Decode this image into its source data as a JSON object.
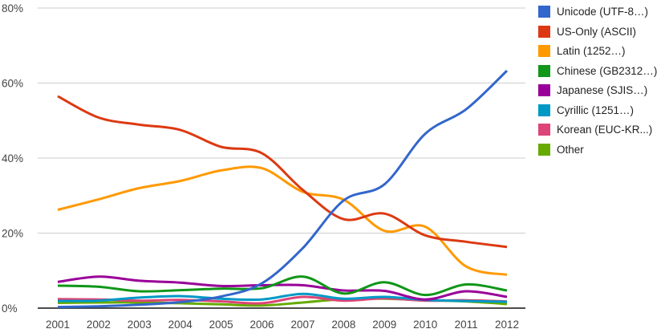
{
  "chart_data": {
    "type": "line",
    "curve": "smooth",
    "grid": true,
    "legend_position": "right",
    "x": [
      "2001",
      "2002",
      "2003",
      "2004",
      "2005",
      "2006",
      "2007",
      "2008",
      "2009",
      "2010",
      "2011",
      "2012"
    ],
    "ylim": [
      0,
      80
    ],
    "y_ticks": [
      0,
      20,
      40,
      60,
      80
    ],
    "y_tick_labels": [
      "0%",
      "20%",
      "40%",
      "60%",
      "80%"
    ],
    "series": [
      {
        "name": "Unicode (UTF-8…)",
        "color": "#3366CC",
        "values": [
          0.3,
          0.5,
          0.9,
          1.6,
          3.1,
          6.6,
          16.0,
          28.7,
          33.0,
          46.5,
          53.0,
          63.3
        ]
      },
      {
        "name": "US-Only (ASCII)",
        "color": "#DC3912",
        "values": [
          56.5,
          50.8,
          48.9,
          47.5,
          43.0,
          41.3,
          31.5,
          23.7,
          25.2,
          19.4,
          17.7,
          16.3
        ]
      },
      {
        "name": "Latin (1252…)",
        "color": "#FF9900",
        "values": [
          26.2,
          29.0,
          32.0,
          33.9,
          36.7,
          37.3,
          31.0,
          28.9,
          20.6,
          21.7,
          11.1,
          8.9
        ]
      },
      {
        "name": "Chinese (GB2312…)",
        "color": "#109618",
        "values": [
          6.0,
          5.7,
          4.5,
          4.8,
          5.2,
          5.3,
          8.4,
          3.9,
          6.9,
          3.5,
          6.3,
          4.7
        ]
      },
      {
        "name": "Japanese (SJIS…)",
        "color": "#990099",
        "values": [
          7.0,
          8.4,
          7.3,
          6.8,
          5.9,
          6.1,
          6.1,
          4.7,
          4.6,
          2.3,
          4.5,
          3.0
        ]
      },
      {
        "name": "Cyrillic (1251…)",
        "color": "#0099C6",
        "values": [
          1.9,
          2.0,
          2.8,
          3.2,
          2.5,
          2.3,
          3.8,
          2.5,
          3.0,
          2.2,
          1.9,
          1.7
        ]
      },
      {
        "name": "Korean (EUC-KR...)",
        "color": "#DD4477",
        "values": [
          2.4,
          2.3,
          2.0,
          2.2,
          1.8,
          1.3,
          3.0,
          2.0,
          2.6,
          2.0,
          2.1,
          1.8
        ]
      },
      {
        "name": "Other",
        "color": "#66AA00",
        "values": [
          1.4,
          1.5,
          1.5,
          1.3,
          1.0,
          0.7,
          1.5,
          2.4,
          2.5,
          2.1,
          1.8,
          1.1
        ]
      }
    ]
  },
  "colors": {
    "grid": "#cccccc",
    "axis": "#333333",
    "tick_text": "#444444",
    "legend_text": "#222222",
    "background": "#ffffff"
  }
}
